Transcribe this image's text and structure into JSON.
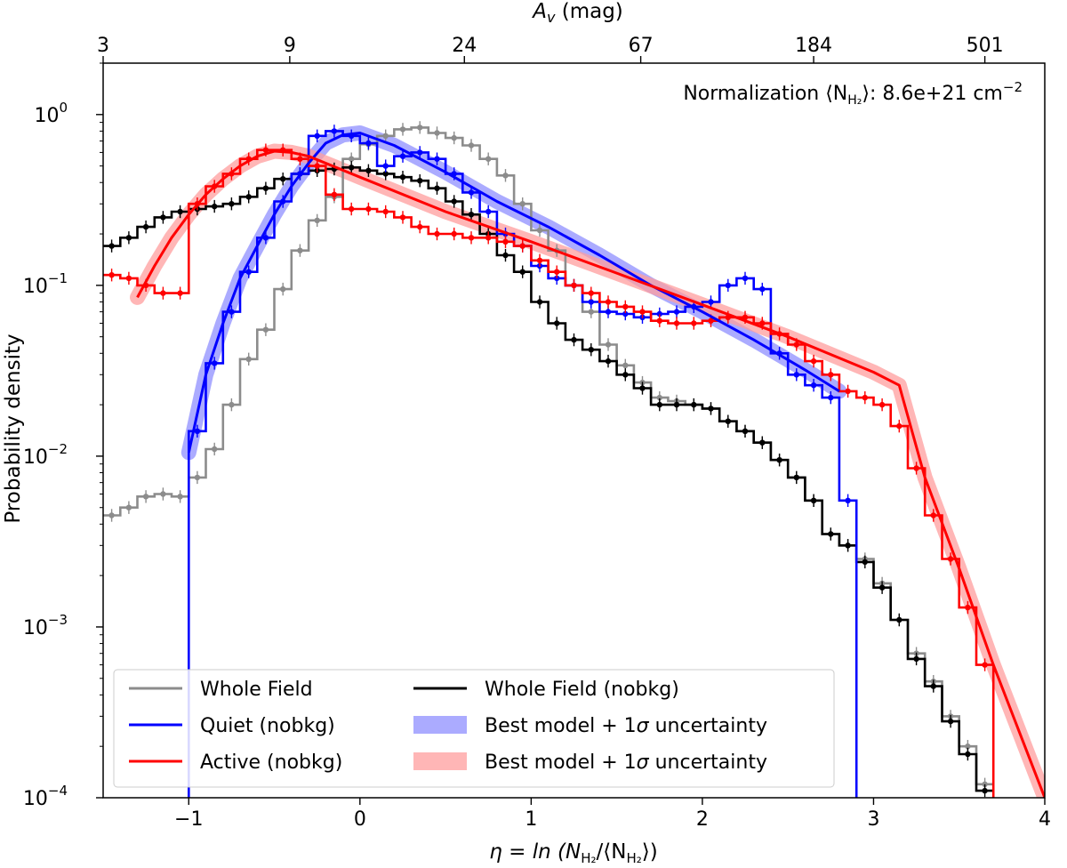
{
  "chart_data": {
    "type": "line",
    "yscale": "log",
    "xlabel_prefix": "η = ln (N",
    "xlabel_sub1": "H₂",
    "xlabel_mid": "/⟨N",
    "xlabel_sub2": "H₂",
    "xlabel_suffix": "⟩)",
    "ylabel": "Probability density",
    "top_axis_label_sym": "A",
    "top_axis_label_sub": "v",
    "top_axis_label_unit": " (mag)",
    "annotation_prefix": "Normalization ⟨N",
    "annotation_sub": "H₂",
    "annotation_suffix": "⟩: 8.6e+21 cm",
    "annotation_exp": "−2",
    "xlim": [
      -1.5,
      4.0
    ],
    "ylim": [
      0.0001,
      2.0
    ],
    "x_ticks": [
      -1,
      0,
      1,
      2,
      3,
      4
    ],
    "x_tick_labels": [
      "−1",
      "0",
      "1",
      "2",
      "3",
      "4"
    ],
    "y_ticks": [
      0.0001,
      0.001,
      0.01,
      0.1,
      1
    ],
    "y_tick_base": "10",
    "y_tick_exps": [
      "−4",
      "−3",
      "−2",
      "−1",
      "0"
    ],
    "top_ticks_eta": [
      -1.5,
      -0.41,
      0.61,
      1.64,
      2.65,
      3.65
    ],
    "top_tick_labels": [
      "3",
      "9",
      "24",
      "67",
      "184",
      "501"
    ],
    "legend": [
      {
        "label": "Whole Field",
        "color": "#8c8c8c",
        "kind": "line"
      },
      {
        "label": "Whole Field (nobkg)",
        "color": "#000000",
        "kind": "line"
      },
      {
        "label": "Quiet (nobkg)",
        "color": "#0000ff",
        "kind": "line"
      },
      {
        "label_prefix": "Best model + 1",
        "label_sym": "σ",
        "label_suffix": " uncertainty",
        "color": "#8f8fff",
        "kind": "band"
      },
      {
        "label": "Active (nobkg)",
        "color": "#ff0000",
        "kind": "line"
      },
      {
        "label_prefix": "Best model + 1",
        "label_sym": "σ",
        "label_suffix": " uncertainty",
        "color": "#ff9d9d",
        "kind": "band"
      }
    ],
    "series": [
      {
        "name": "Whole Field",
        "color": "#8c8c8c",
        "step_width": 0.1,
        "x": [
          -1.45,
          -1.35,
          -1.25,
          -1.15,
          -1.05,
          -0.95,
          -0.85,
          -0.75,
          -0.65,
          -0.55,
          -0.45,
          -0.35,
          -0.25,
          -0.15,
          -0.05,
          0.05,
          0.15,
          0.25,
          0.35,
          0.45,
          0.55,
          0.65,
          0.75,
          0.85,
          0.95,
          1.05,
          1.15,
          1.25,
          1.35,
          1.45,
          1.55,
          1.65,
          1.75,
          1.85,
          1.95,
          2.05,
          2.15,
          2.25,
          2.35,
          2.45,
          2.55,
          2.65,
          2.75,
          2.85,
          2.95,
          3.05,
          3.15,
          3.25,
          3.35,
          3.45,
          3.55,
          3.65
        ],
        "values": [
          0.0045,
          0.005,
          0.0058,
          0.006,
          0.0058,
          0.0075,
          0.011,
          0.02,
          0.037,
          0.055,
          0.095,
          0.16,
          0.24,
          0.33,
          0.55,
          0.67,
          0.75,
          0.82,
          0.84,
          0.78,
          0.73,
          0.66,
          0.55,
          0.44,
          0.3,
          0.21,
          0.16,
          0.1,
          0.07,
          0.045,
          0.034,
          0.027,
          0.022,
          0.021,
          0.02,
          0.019,
          0.016,
          0.014,
          0.012,
          0.0095,
          0.0075,
          0.0055,
          0.0035,
          0.003,
          0.0025,
          0.0018,
          0.0011,
          0.0007,
          0.00048,
          0.0003,
          0.0002,
          0.00012
        ],
        "markers": true
      },
      {
        "name": "Whole Field (nobkg)",
        "color": "#000000",
        "step_width": 0.1,
        "x": [
          -1.45,
          -1.35,
          -1.25,
          -1.15,
          -1.05,
          -0.95,
          -0.85,
          -0.75,
          -0.65,
          -0.55,
          -0.45,
          -0.35,
          -0.25,
          -0.15,
          -0.05,
          0.05,
          0.15,
          0.25,
          0.35,
          0.45,
          0.55,
          0.65,
          0.75,
          0.85,
          0.95,
          1.05,
          1.15,
          1.25,
          1.35,
          1.45,
          1.55,
          1.65,
          1.75,
          1.85,
          1.95,
          2.05,
          2.15,
          2.25,
          2.35,
          2.45,
          2.55,
          2.65,
          2.75,
          2.85,
          2.95,
          3.05,
          3.15,
          3.25,
          3.35,
          3.45,
          3.55,
          3.65
        ],
        "values": [
          0.17,
          0.19,
          0.22,
          0.25,
          0.27,
          0.28,
          0.29,
          0.3,
          0.33,
          0.37,
          0.42,
          0.45,
          0.47,
          0.48,
          0.49,
          0.47,
          0.45,
          0.43,
          0.41,
          0.37,
          0.31,
          0.26,
          0.2,
          0.15,
          0.12,
          0.08,
          0.06,
          0.048,
          0.042,
          0.036,
          0.03,
          0.025,
          0.02,
          0.02,
          0.02,
          0.019,
          0.016,
          0.014,
          0.012,
          0.0095,
          0.0075,
          0.0055,
          0.0035,
          0.003,
          0.0024,
          0.0017,
          0.0011,
          0.00065,
          0.00045,
          0.00028,
          0.00018,
          0.00011
        ],
        "markers": true
      },
      {
        "name": "Quiet (nobkg)",
        "color": "#0000ff",
        "step_width": 0.1,
        "x": [
          -0.95,
          -0.85,
          -0.75,
          -0.65,
          -0.55,
          -0.45,
          -0.35,
          -0.25,
          -0.15,
          -0.05,
          0.05,
          0.15,
          0.25,
          0.35,
          0.45,
          0.55,
          0.65,
          0.75,
          0.85,
          0.95,
          1.05,
          1.15,
          1.25,
          1.35,
          1.45,
          1.55,
          1.65,
          1.75,
          1.85,
          1.95,
          2.05,
          2.15,
          2.25,
          2.35,
          2.45,
          2.55,
          2.65,
          2.75,
          2.85
        ],
        "values": [
          0.014,
          0.035,
          0.07,
          0.12,
          0.19,
          0.31,
          0.45,
          0.75,
          0.8,
          0.75,
          0.68,
          0.5,
          0.57,
          0.6,
          0.55,
          0.45,
          0.35,
          0.27,
          0.2,
          0.17,
          0.13,
          0.11,
          0.1,
          0.08,
          0.07,
          0.068,
          0.065,
          0.068,
          0.07,
          0.075,
          0.08,
          0.1,
          0.11,
          0.095,
          0.04,
          0.03,
          0.026,
          0.022,
          0.0055
        ],
        "start_edge": -1.0,
        "end_edge": 2.9,
        "markers": true
      },
      {
        "name": "Active (nobkg)",
        "color": "#ff0000",
        "step_width": 0.1,
        "x": [
          -1.45,
          -1.35,
          -1.25,
          -1.15,
          -1.05,
          -0.95,
          -0.85,
          -0.75,
          -0.65,
          -0.55,
          -0.45,
          -0.35,
          -0.25,
          -0.15,
          -0.05,
          0.05,
          0.15,
          0.25,
          0.35,
          0.45,
          0.55,
          0.65,
          0.75,
          0.85,
          0.95,
          1.05,
          1.15,
          1.25,
          1.35,
          1.45,
          1.55,
          1.65,
          1.75,
          1.85,
          1.95,
          2.05,
          2.15,
          2.25,
          2.35,
          2.45,
          2.55,
          2.65,
          2.75,
          2.85,
          2.95,
          3.05,
          3.15,
          3.25,
          3.35,
          3.45,
          3.55,
          3.65
        ],
        "values": [
          0.115,
          0.11,
          0.1,
          0.09,
          0.09,
          0.3,
          0.38,
          0.45,
          0.55,
          0.62,
          0.62,
          0.55,
          0.5,
          0.34,
          0.28,
          0.28,
          0.27,
          0.25,
          0.22,
          0.2,
          0.2,
          0.19,
          0.19,
          0.18,
          0.17,
          0.14,
          0.12,
          0.1,
          0.09,
          0.08,
          0.075,
          0.07,
          0.062,
          0.06,
          0.06,
          0.062,
          0.065,
          0.065,
          0.06,
          0.052,
          0.045,
          0.036,
          0.03,
          0.024,
          0.022,
          0.02,
          0.015,
          0.0085,
          0.0045,
          0.0025,
          0.0013,
          0.0006
        ],
        "end_edge": 3.7,
        "markers": true
      }
    ],
    "models": [
      {
        "name": "Quiet best model",
        "color": "#0000ff",
        "band_color": "#8f8fff",
        "x": [
          -1.0,
          -0.9,
          -0.8,
          -0.7,
          -0.6,
          -0.5,
          -0.4,
          -0.3,
          -0.2,
          -0.1,
          0.0,
          0.2,
          0.5,
          0.8,
          1.1,
          1.4,
          1.7,
          2.0,
          2.3,
          2.6,
          2.8
        ],
        "y": [
          0.0105,
          0.03,
          0.06,
          0.11,
          0.17,
          0.26,
          0.38,
          0.52,
          0.68,
          0.76,
          0.78,
          0.66,
          0.46,
          0.31,
          0.22,
          0.15,
          0.1,
          0.07,
          0.048,
          0.032,
          0.024
        ]
      },
      {
        "name": "Active best model",
        "color": "#ff0000",
        "band_color": "#ff9d9d",
        "x": [
          -1.3,
          -1.2,
          -1.1,
          -1.0,
          -0.9,
          -0.8,
          -0.7,
          -0.6,
          -0.5,
          -0.4,
          -0.3,
          0.0,
          0.5,
          1.0,
          1.5,
          2.0,
          2.5,
          3.0,
          3.15,
          3.3,
          3.5,
          3.7,
          4.0
        ],
        "y": [
          0.085,
          0.13,
          0.19,
          0.26,
          0.34,
          0.42,
          0.5,
          0.57,
          0.61,
          0.6,
          0.57,
          0.43,
          0.27,
          0.18,
          0.118,
          0.077,
          0.05,
          0.031,
          0.026,
          0.0075,
          0.0022,
          0.0006,
          0.0001
        ]
      }
    ]
  }
}
